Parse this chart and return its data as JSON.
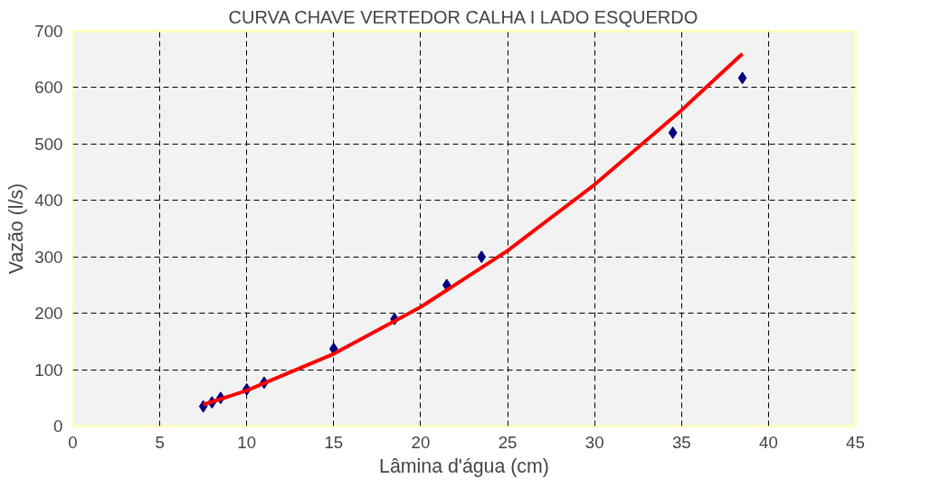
{
  "chart_data": {
    "type": "scatter",
    "title": "CURVA CHAVE VERTEDOR CALHA I LADO ESQUERDO",
    "xlabel": "Lâmina d'água (cm)",
    "ylabel": "Vazão (l/s)",
    "series": [
      {
        "color": "#000080",
        "marker": "diamond",
        "x": [
          7.5,
          8,
          8.5,
          10,
          11,
          15,
          18.5,
          21.5,
          23.5,
          34.5,
          38.5
        ],
        "values": [
          35,
          42,
          50,
          65,
          77,
          137,
          190,
          250,
          300,
          520,
          617
        ]
      },
      {
        "type": "line",
        "color": "#ff0000",
        "line_style": "solid",
        "x": [
          7.5,
          10,
          15,
          20,
          25,
          30,
          35,
          38.5
        ],
        "values": [
          38,
          63,
          128,
          211,
          311,
          428,
          560,
          660
        ]
      }
    ],
    "xlim": [
      0,
      45
    ],
    "ylim": [
      0,
      700
    ],
    "xticks": [
      0,
      5,
      10,
      15,
      20,
      25,
      30,
      35,
      40,
      45
    ],
    "yticks": [
      0,
      100,
      200,
      300,
      400,
      500,
      600,
      700
    ],
    "grid": true
  }
}
